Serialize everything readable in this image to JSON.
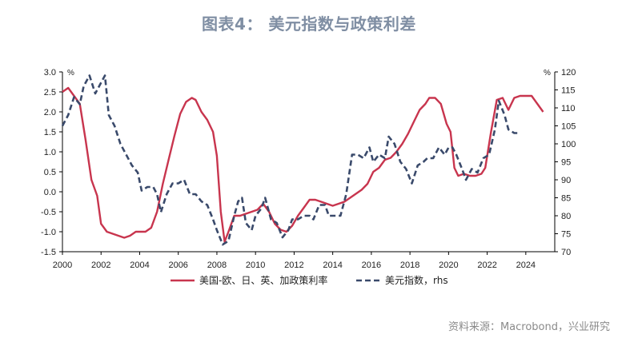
{
  "title": "图表4：  美元指数与政策利差",
  "source": "资料来源：Macrobond，兴业研究",
  "chart_data": {
    "type": "line",
    "left_unit": "%",
    "right_unit": "%",
    "x_ticks": [
      "2000",
      "2002",
      "2004",
      "2006",
      "2008",
      "2010",
      "2012",
      "2014",
      "2016",
      "2018",
      "2020",
      "2022",
      "2024"
    ],
    "y_left_ticks": [
      "3.0",
      "2.5",
      "2.0",
      "1.5",
      "1.0",
      "0.5",
      "0.0",
      "-0.5",
      "-1.0",
      "-1.5"
    ],
    "y_right_ticks": [
      "120",
      "115",
      "110",
      "105",
      "100",
      "95",
      "90",
      "85",
      "80",
      "75",
      "70"
    ],
    "xlim": [
      2000,
      2025.5
    ],
    "ylim_left": [
      -1.5,
      3.0
    ],
    "ylim_right": [
      70,
      120
    ],
    "legend_position": "bottom-center",
    "series": [
      {
        "name": "美国-欧、日、英、加政策利率",
        "axis": "left",
        "color": "#c8354e",
        "style": "solid",
        "points": [
          [
            2000.0,
            2.5
          ],
          [
            2000.3,
            2.6
          ],
          [
            2000.6,
            2.4
          ],
          [
            2000.9,
            2.2
          ],
          [
            2001.2,
            1.3
          ],
          [
            2001.5,
            0.3
          ],
          [
            2001.8,
            -0.1
          ],
          [
            2002.0,
            -0.8
          ],
          [
            2002.3,
            -1.0
          ],
          [
            2002.6,
            -1.05
          ],
          [
            2002.9,
            -1.1
          ],
          [
            2003.2,
            -1.15
          ],
          [
            2003.5,
            -1.1
          ],
          [
            2003.8,
            -1.0
          ],
          [
            2004.0,
            -1.0
          ],
          [
            2004.3,
            -1.0
          ],
          [
            2004.6,
            -0.9
          ],
          [
            2004.9,
            -0.5
          ],
          [
            2005.2,
            0.2
          ],
          [
            2005.5,
            0.8
          ],
          [
            2005.8,
            1.4
          ],
          [
            2006.1,
            1.95
          ],
          [
            2006.4,
            2.25
          ],
          [
            2006.7,
            2.35
          ],
          [
            2006.9,
            2.3
          ],
          [
            2007.2,
            2.0
          ],
          [
            2007.5,
            1.8
          ],
          [
            2007.8,
            1.5
          ],
          [
            2008.0,
            0.9
          ],
          [
            2008.2,
            -0.5
          ],
          [
            2008.4,
            -1.25
          ],
          [
            2008.6,
            -1.0
          ],
          [
            2008.9,
            -0.6
          ],
          [
            2009.2,
            -0.6
          ],
          [
            2009.5,
            -0.55
          ],
          [
            2009.8,
            -0.5
          ],
          [
            2010.1,
            -0.45
          ],
          [
            2010.4,
            -0.3
          ],
          [
            2010.7,
            -0.5
          ],
          [
            2011.0,
            -0.8
          ],
          [
            2011.3,
            -0.95
          ],
          [
            2011.6,
            -1.0
          ],
          [
            2011.9,
            -0.85
          ],
          [
            2012.2,
            -0.6
          ],
          [
            2012.5,
            -0.4
          ],
          [
            2012.8,
            -0.2
          ],
          [
            2013.1,
            -0.2
          ],
          [
            2013.4,
            -0.25
          ],
          [
            2013.7,
            -0.3
          ],
          [
            2014.0,
            -0.35
          ],
          [
            2014.3,
            -0.3
          ],
          [
            2014.6,
            -0.25
          ],
          [
            2014.9,
            -0.15
          ],
          [
            2015.2,
            -0.05
          ],
          [
            2015.5,
            0.05
          ],
          [
            2015.8,
            0.2
          ],
          [
            2016.1,
            0.5
          ],
          [
            2016.4,
            0.6
          ],
          [
            2016.7,
            0.8
          ],
          [
            2017.0,
            0.85
          ],
          [
            2017.3,
            1.0
          ],
          [
            2017.6,
            1.2
          ],
          [
            2017.9,
            1.45
          ],
          [
            2018.2,
            1.75
          ],
          [
            2018.5,
            2.05
          ],
          [
            2018.8,
            2.2
          ],
          [
            2019.0,
            2.35
          ],
          [
            2019.3,
            2.35
          ],
          [
            2019.6,
            2.2
          ],
          [
            2019.9,
            1.7
          ],
          [
            2020.1,
            1.5
          ],
          [
            2020.3,
            0.6
          ],
          [
            2020.5,
            0.4
          ],
          [
            2020.8,
            0.45
          ],
          [
            2021.1,
            0.4
          ],
          [
            2021.4,
            0.4
          ],
          [
            2021.7,
            0.45
          ],
          [
            2021.9,
            0.6
          ],
          [
            2022.2,
            1.5
          ],
          [
            2022.5,
            2.3
          ],
          [
            2022.8,
            2.35
          ],
          [
            2023.1,
            2.05
          ],
          [
            2023.4,
            2.35
          ],
          [
            2023.7,
            2.4
          ],
          [
            2024.0,
            2.4
          ],
          [
            2024.3,
            2.4
          ],
          [
            2024.6,
            2.2
          ],
          [
            2024.9,
            2.0
          ]
        ]
      },
      {
        "name": "美元指数，rhs",
        "axis": "right",
        "color": "#3a4a6b",
        "style": "dashed",
        "points": [
          [
            2000.0,
            105
          ],
          [
            2000.3,
            108
          ],
          [
            2000.6,
            113
          ],
          [
            2000.9,
            111
          ],
          [
            2001.1,
            116
          ],
          [
            2001.4,
            119
          ],
          [
            2001.7,
            114
          ],
          [
            2002.0,
            117
          ],
          [
            2002.2,
            119
          ],
          [
            2002.4,
            108
          ],
          [
            2002.7,
            105
          ],
          [
            2003.0,
            100
          ],
          [
            2003.3,
            97
          ],
          [
            2003.6,
            94
          ],
          [
            2003.9,
            92
          ],
          [
            2004.1,
            87
          ],
          [
            2004.4,
            88
          ],
          [
            2004.7,
            88
          ],
          [
            2004.9,
            86
          ],
          [
            2005.1,
            81
          ],
          [
            2005.4,
            86
          ],
          [
            2005.7,
            89
          ],
          [
            2006.0,
            89
          ],
          [
            2006.3,
            90
          ],
          [
            2006.6,
            86
          ],
          [
            2006.9,
            86
          ],
          [
            2007.2,
            84
          ],
          [
            2007.5,
            83
          ],
          [
            2007.8,
            79
          ],
          [
            2008.0,
            76
          ],
          [
            2008.3,
            72
          ],
          [
            2008.6,
            73
          ],
          [
            2008.9,
            80
          ],
          [
            2009.1,
            84
          ],
          [
            2009.3,
            85
          ],
          [
            2009.5,
            78
          ],
          [
            2009.8,
            76
          ],
          [
            2010.0,
            80
          ],
          [
            2010.3,
            82
          ],
          [
            2010.5,
            85
          ],
          [
            2010.8,
            79
          ],
          [
            2011.1,
            78
          ],
          [
            2011.4,
            74
          ],
          [
            2011.7,
            76
          ],
          [
            2011.9,
            79
          ],
          [
            2012.2,
            79
          ],
          [
            2012.5,
            80
          ],
          [
            2012.8,
            80
          ],
          [
            2013.0,
            79
          ],
          [
            2013.3,
            83
          ],
          [
            2013.6,
            83
          ],
          [
            2013.8,
            80
          ],
          [
            2014.1,
            80
          ],
          [
            2014.4,
            80
          ],
          [
            2014.7,
            86
          ],
          [
            2015.0,
            97
          ],
          [
            2015.3,
            97
          ],
          [
            2015.6,
            96
          ],
          [
            2015.9,
            99
          ],
          [
            2016.1,
            95
          ],
          [
            2016.4,
            97
          ],
          [
            2016.7,
            96
          ],
          [
            2016.9,
            102
          ],
          [
            2017.2,
            100
          ],
          [
            2017.5,
            95
          ],
          [
            2017.8,
            93
          ],
          [
            2018.1,
            89
          ],
          [
            2018.4,
            94
          ],
          [
            2018.7,
            95
          ],
          [
            2018.9,
            96
          ],
          [
            2019.2,
            96
          ],
          [
            2019.5,
            99
          ],
          [
            2019.8,
            97
          ],
          [
            2020.0,
            99
          ],
          [
            2020.2,
            99
          ],
          [
            2020.4,
            97
          ],
          [
            2020.7,
            93
          ],
          [
            2020.9,
            90
          ],
          [
            2021.2,
            93
          ],
          [
            2021.5,
            92
          ],
          [
            2021.8,
            96
          ],
          [
            2022.1,
            97
          ],
          [
            2022.4,
            104
          ],
          [
            2022.6,
            112
          ],
          [
            2022.9,
            108
          ],
          [
            2023.1,
            104
          ],
          [
            2023.4,
            103
          ],
          [
            2023.6,
            103
          ]
        ]
      }
    ]
  }
}
